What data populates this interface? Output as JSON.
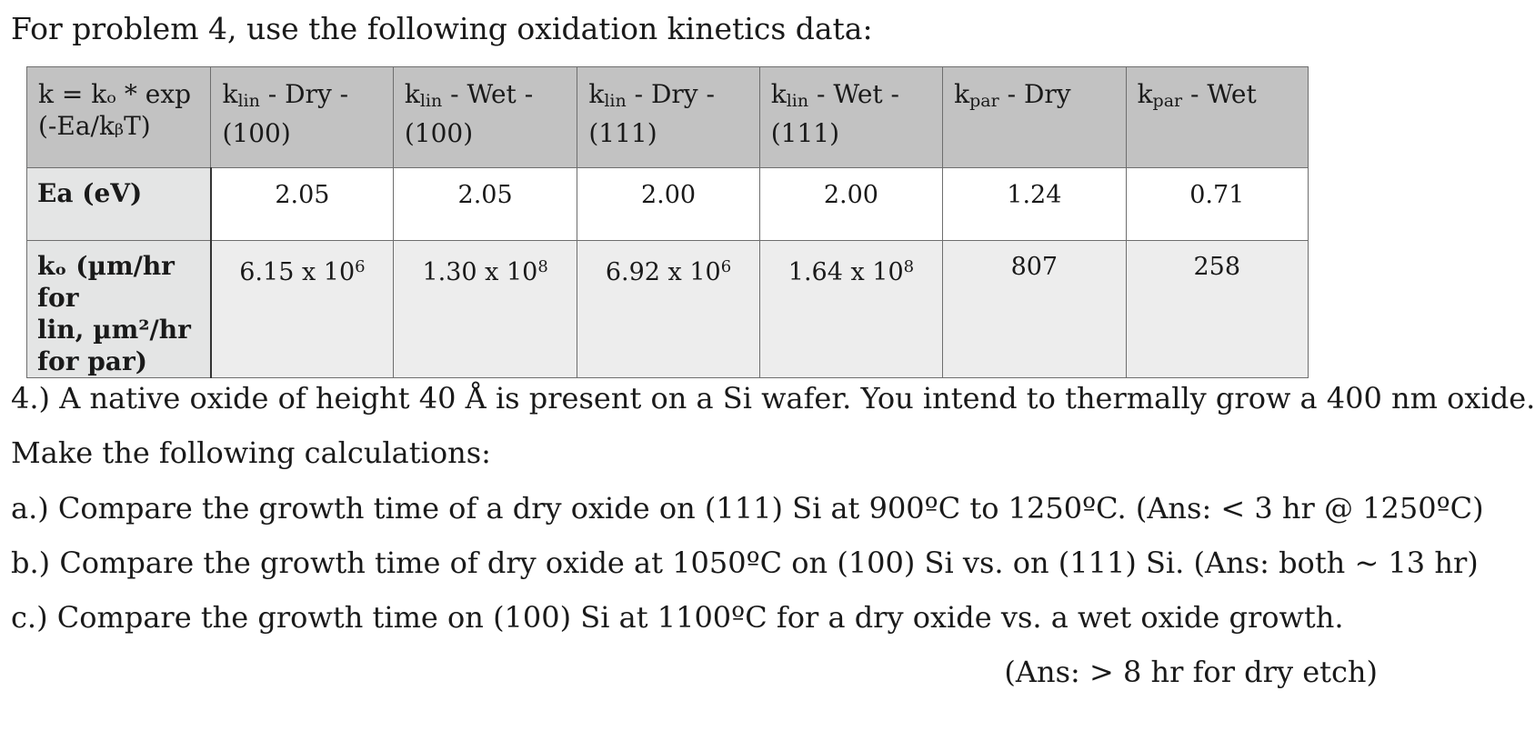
{
  "intro": "For problem 4, use the following oxidation kinetics data:",
  "table": {
    "corner": {
      "line1": "k = kₒ * exp",
      "line2": "(-Ea/kᵦT)"
    },
    "columns": [
      {
        "base": "k",
        "sub": "lin",
        "line1_rest": " - Dry -",
        "line2": "(100)"
      },
      {
        "base": "k",
        "sub": "lin",
        "line1_rest": " - Wet -",
        "line2": "(100)"
      },
      {
        "base": "k",
        "sub": "lin",
        "line1_rest": " - Dry -",
        "line2": "(111)"
      },
      {
        "base": "k",
        "sub": "lin",
        "line1_rest": " - Wet -",
        "line2": "(111)"
      },
      {
        "base": "k",
        "sub": "par",
        "line1_rest": " - Dry",
        "line2": ""
      },
      {
        "base": "k",
        "sub": "par",
        "line1_rest": " - Wet",
        "line2": ""
      }
    ],
    "ea_label": "Ea (eV)",
    "ea_values": [
      "2.05",
      "2.05",
      "2.00",
      "2.00",
      "1.24",
      "0.71"
    ],
    "ko_label": "kₒ (µm/hr for\nlin, µm²/hr\nfor par)",
    "ko_values": [
      {
        "mant": "6.15 x 10",
        "exp": "6"
      },
      {
        "mant": "1.30 x 10",
        "exp": "8"
      },
      {
        "mant": "6.92 x 10",
        "exp": "6"
      },
      {
        "mant": "1.64 x 10",
        "exp": "8"
      },
      {
        "mant": "807",
        "exp": ""
      },
      {
        "mant": "258",
        "exp": ""
      }
    ]
  },
  "problem": {
    "line1": "4.) A native oxide of height 40 Å is present on a Si wafer. You intend to thermally grow a 400 nm oxide.",
    "line2": "Make the following calculations:",
    "a": "a.) Compare the growth time of a dry oxide on (111) Si at 900ºC to 1250ºC. (Ans: < 3 hr @ 1250ºC)",
    "b": "b.) Compare the growth time of dry oxide at 1050ºC on (100) Si vs. on (111) Si. (Ans: both ~ 13 hr)",
    "c": "c.) Compare the growth time on (100) Si at 1100ºC for a dry oxide vs. a wet oxide growth.",
    "c_ans": "(Ans: > 8 hr for dry etch)"
  }
}
